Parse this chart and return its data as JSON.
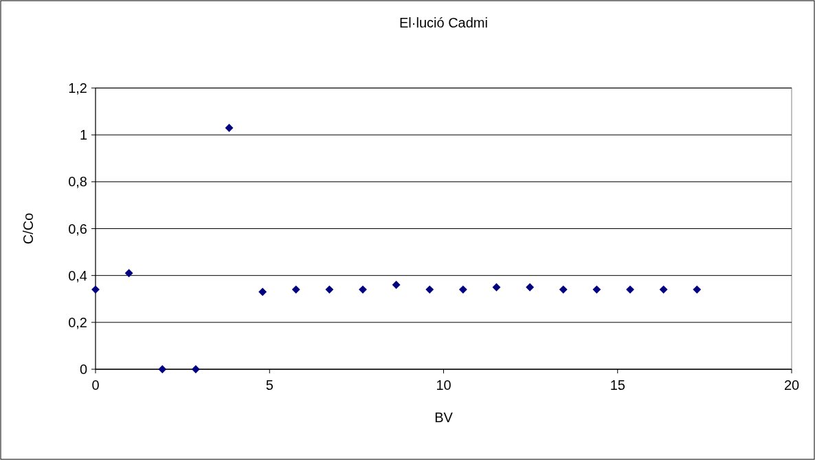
{
  "chart_data": {
    "type": "scatter",
    "title": "El·lució Cadmi",
    "xlabel": "BV",
    "ylabel": "C/Co",
    "x": [
      0,
      0.96,
      1.92,
      2.88,
      3.84,
      4.8,
      5.76,
      6.72,
      7.68,
      8.64,
      9.6,
      10.56,
      11.52,
      12.48,
      13.44,
      14.4,
      15.36,
      16.32,
      17.28
    ],
    "series": [
      {
        "color": "#000080",
        "values": [
          0.34,
          0.41,
          0,
          0,
          1.03,
          0.33,
          0.34,
          0.34,
          0.34,
          0.36,
          0.34,
          0.34,
          0.35,
          0.35,
          0.34,
          0.34,
          0.34,
          0.34,
          0.34
        ]
      }
    ],
    "xlim": [
      0,
      20
    ],
    "xticks": [
      0,
      5,
      10,
      15,
      20
    ],
    "ylim": [
      0,
      1.2
    ],
    "yticks": [
      {
        "value": 0,
        "label": "0"
      },
      {
        "value": 0.2,
        "label": "0,2"
      },
      {
        "value": 0.4,
        "label": "0,4"
      },
      {
        "value": 0.6,
        "label": "0,6"
      },
      {
        "value": 0.8,
        "label": "0,8"
      },
      {
        "value": 1,
        "label": "1"
      },
      {
        "value": 1.2,
        "label": "1,2"
      }
    ],
    "grid": "y",
    "marker": "diamond"
  }
}
